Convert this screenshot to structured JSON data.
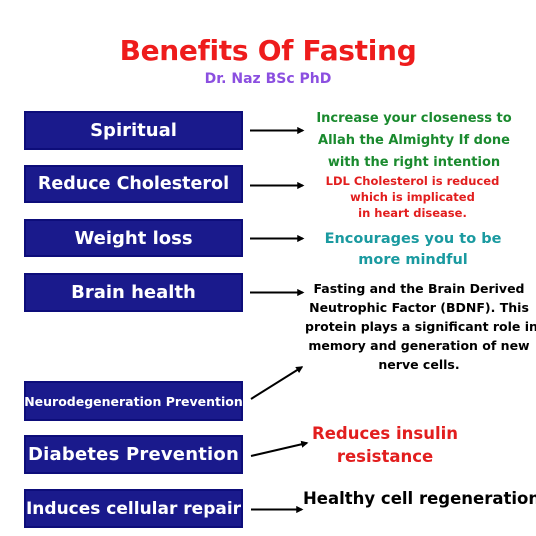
{
  "header": {
    "title": "Benefits Of Fasting",
    "subtitle": "Dr. Naz BSc PhD"
  },
  "colors": {
    "title": "#ee1c1c",
    "subtitle": "#8b4fe0",
    "box_fill": "#1a1a8c",
    "box_border": "#0d0d7a",
    "box_text": "#ffffff",
    "arrow": "#000000",
    "green": "#1a8a2e",
    "red": "#e21e1e",
    "teal": "#1a9aa0",
    "black": "#000000"
  },
  "benefits": [
    {
      "label": "Spiritual",
      "description": [
        "Increase your closeness to",
        "Allah the Almighty If done",
        "with the right intention"
      ]
    },
    {
      "label": "Reduce Cholesterol",
      "description": [
        "LDL Cholesterol is reduced",
        "which is implicated",
        "in heart disease."
      ]
    },
    {
      "label": "Weight loss",
      "description": [
        "Encourages you to be",
        "more mindful"
      ]
    },
    {
      "label": "Brain health",
      "description": [
        "Fasting and the Brain Derived",
        "Neutrophic Factor (BDNF). This",
        "protein plays a significant role in",
        "memory and generation of new",
        "nerve cells."
      ]
    },
    {
      "label": "Neurodegeneration Prevention",
      "description": []
    },
    {
      "label": "Diabetes Prevention",
      "description": [
        "Reduces insulin",
        "resistance"
      ]
    },
    {
      "label": "Induces cellular repair",
      "description": [
        "Healthy cell regeneration"
      ]
    }
  ]
}
